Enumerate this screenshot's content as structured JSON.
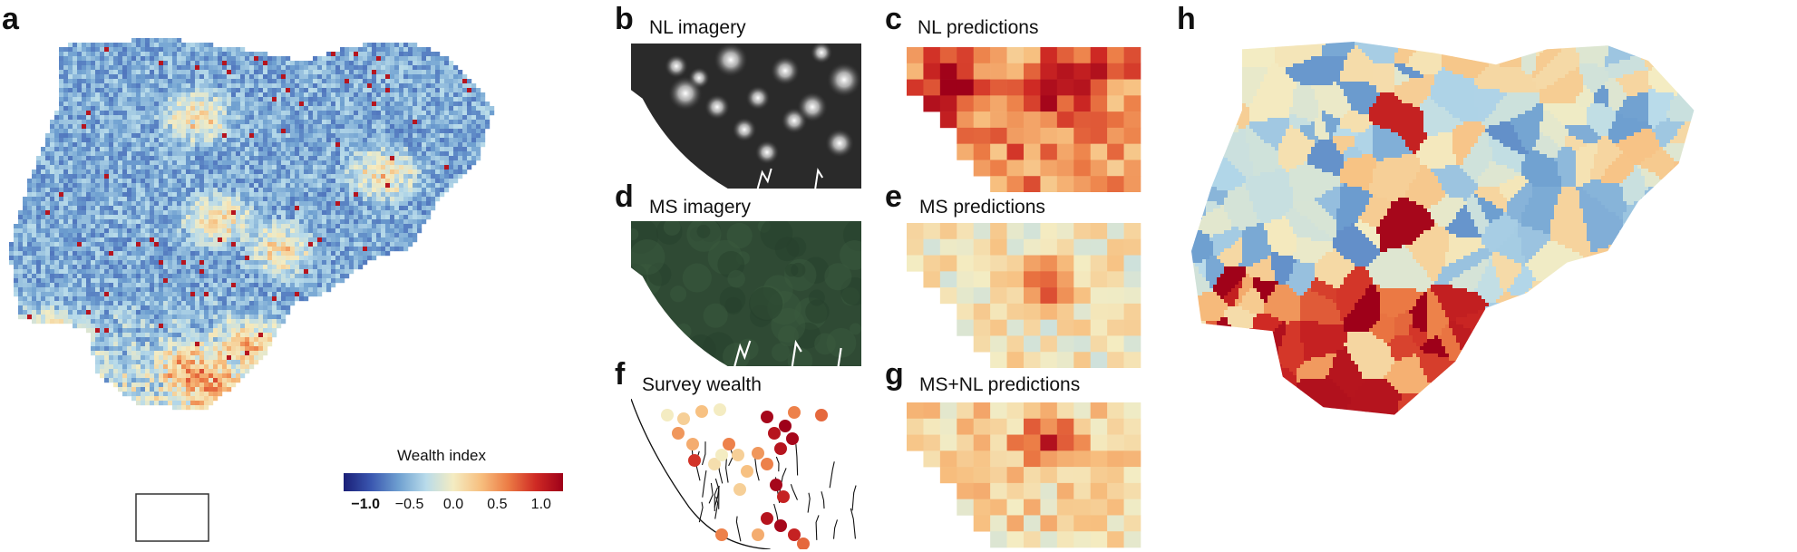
{
  "panels": {
    "a": {
      "letter": "a"
    },
    "b": {
      "letter": "b",
      "title": "NL imagery"
    },
    "c": {
      "letter": "c",
      "title": "NL predictions"
    },
    "d": {
      "letter": "d",
      "title": "MS imagery"
    },
    "e": {
      "letter": "e",
      "title": "MS predictions"
    },
    "f": {
      "letter": "f",
      "title": "Survey wealth"
    },
    "g": {
      "letter": "g",
      "title": "MS+NL predictions"
    },
    "h": {
      "letter": "h"
    }
  },
  "legend": {
    "title": "Wealth index",
    "ticks": [
      "−1.0",
      "−0.5",
      "0.0",
      "0.5",
      "1.0"
    ],
    "tick_values": [
      -1.0,
      -0.5,
      0.0,
      0.5,
      1.0
    ],
    "range": [
      -1.25,
      1.25
    ],
    "colors": [
      "#1a1f77",
      "#3a57b0",
      "#6e9fd0",
      "#b8dbea",
      "#f4ecc2",
      "#f7bf7f",
      "#ec7c45",
      "#cf2a24",
      "#9e0019"
    ]
  },
  "colors": {
    "background_map": "#8fb5d6",
    "inset_box": "#333333"
  }
}
